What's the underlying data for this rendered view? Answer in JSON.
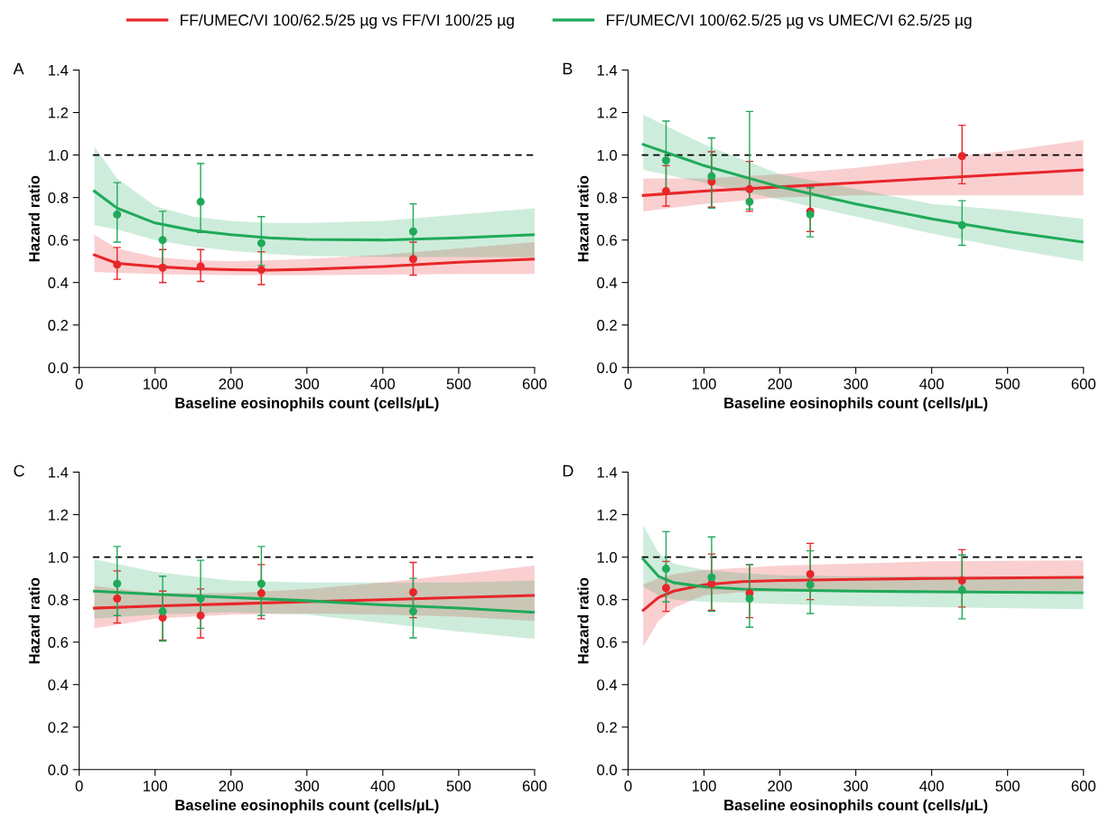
{
  "chart_data": [
    {
      "type": "line",
      "title": "A",
      "xlabel": "Baseline eosinophils count (cells/µL)",
      "ylabel": "Hazard ratio",
      "xlim": [
        0,
        600
      ],
      "xticks": [
        0,
        100,
        200,
        300,
        400,
        500,
        600
      ],
      "ylim": [
        0,
        1.4
      ],
      "yticks": [
        {
          "value": 0,
          "label": "0.0"
        },
        {
          "value": 0.2,
          "label": "0.2"
        },
        {
          "value": 0.4,
          "label": "0.4"
        },
        {
          "value": 0.6,
          "label": "0.6"
        },
        {
          "value": 0.8,
          "label": "0.8"
        },
        {
          "value": 1.0,
          "label": "1.0"
        },
        {
          "value": 1.2,
          "label": "1.2"
        },
        {
          "value": 1.4,
          "label": "1.4"
        }
      ],
      "legend": "top",
      "grid": false,
      "ref_lines": [
        {
          "axis": "y",
          "value": 1.0,
          "color": "#000000",
          "line_style": "dashed"
        }
      ],
      "series": [
        {
          "type": "line",
          "name": "FF/UMEC/VI 100/62.5/25 µg vs FF/VI 100/25 µg",
          "color": "#e8262a",
          "x": [
            20,
            50,
            100,
            150,
            200,
            250,
            300,
            400,
            500,
            600
          ],
          "values": [
            0.53,
            0.49,
            0.475,
            0.465,
            0.46,
            0.458,
            0.462,
            0.475,
            0.495,
            0.51
          ],
          "lower": [
            0.45,
            0.445,
            0.44,
            0.437,
            0.435,
            0.435,
            0.435,
            0.437,
            0.44,
            0.44
          ],
          "upper": [
            0.625,
            0.56,
            0.52,
            0.505,
            0.5,
            0.505,
            0.51,
            0.53,
            0.56,
            0.59
          ]
        },
        {
          "type": "line",
          "name": "FF/UMEC/VI 100/62.5/25 µg vs UMEC/VI 62.5/25 µg",
          "color": "#1faa59",
          "x": [
            20,
            50,
            100,
            150,
            200,
            250,
            300,
            400,
            500,
            600
          ],
          "values": [
            0.83,
            0.75,
            0.68,
            0.645,
            0.625,
            0.61,
            0.603,
            0.6,
            0.61,
            0.625
          ],
          "lower": [
            0.67,
            0.65,
            0.6,
            0.57,
            0.55,
            0.535,
            0.525,
            0.52,
            0.52,
            0.52
          ],
          "upper": [
            1.04,
            0.89,
            0.76,
            0.71,
            0.69,
            0.68,
            0.68,
            0.69,
            0.72,
            0.75
          ]
        },
        {
          "type": "scatter",
          "color": "#e8262a",
          "x": [
            50,
            110,
            160,
            240,
            440
          ],
          "values": [
            0.485,
            0.47,
            0.475,
            0.46,
            0.51
          ],
          "errors": [
            [
              0.415,
              0.565
            ],
            [
              0.4,
              0.555
            ],
            [
              0.405,
              0.555
            ],
            [
              0.39,
              0.545
            ],
            [
              0.435,
              0.59
            ]
          ]
        },
        {
          "type": "scatter",
          "color": "#1faa59",
          "x": [
            50,
            110,
            160,
            240,
            440
          ],
          "values": [
            0.72,
            0.6,
            0.78,
            0.585,
            0.64
          ],
          "errors": [
            [
              0.59,
              0.87
            ],
            [
              0.48,
              0.735
            ],
            [
              0.635,
              0.96
            ],
            [
              0.48,
              0.71
            ],
            [
              0.52,
              0.77
            ]
          ]
        }
      ]
    },
    {
      "type": "line",
      "title": "B",
      "xlabel": "Baseline eosinophils count (cells/µL)",
      "ylabel": "Hazard ratio",
      "xlim": [
        0,
        600
      ],
      "xticks": [
        0,
        100,
        200,
        300,
        400,
        500,
        600
      ],
      "ylim": [
        0,
        1.4
      ],
      "yticks": [
        {
          "value": 0,
          "label": "0.0"
        },
        {
          "value": 0.2,
          "label": "0.2"
        },
        {
          "value": 0.4,
          "label": "0.4"
        },
        {
          "value": 0.6,
          "label": "0.6"
        },
        {
          "value": 0.8,
          "label": "0.8"
        },
        {
          "value": 1.0,
          "label": "1.0"
        },
        {
          "value": 1.2,
          "label": "1.2"
        },
        {
          "value": 1.4,
          "label": "1.4"
        }
      ],
      "grid": false,
      "ref_lines": [
        {
          "axis": "y",
          "value": 1.0,
          "color": "#000000",
          "line_style": "dashed"
        }
      ],
      "series": [
        {
          "type": "line",
          "color": "#e8262a",
          "x": [
            20,
            100,
            200,
            300,
            400,
            500,
            600
          ],
          "values": [
            0.81,
            0.83,
            0.85,
            0.87,
            0.89,
            0.91,
            0.93
          ],
          "lower": [
            0.735,
            0.77,
            0.8,
            0.81,
            0.81,
            0.81,
            0.81
          ],
          "upper": [
            0.89,
            0.89,
            0.91,
            0.94,
            0.98,
            1.02,
            1.07
          ]
        },
        {
          "type": "line",
          "color": "#1faa59",
          "x": [
            20,
            100,
            200,
            300,
            400,
            500,
            600
          ],
          "values": [
            1.05,
            0.95,
            0.85,
            0.77,
            0.7,
            0.64,
            0.59
          ],
          "lower": [
            0.93,
            0.87,
            0.79,
            0.71,
            0.63,
            0.56,
            0.5
          ],
          "upper": [
            1.19,
            1.05,
            0.91,
            0.84,
            0.77,
            0.74,
            0.7
          ]
        },
        {
          "type": "scatter",
          "color": "#e8262a",
          "x": [
            50,
            110,
            160,
            240,
            440
          ],
          "values": [
            0.83,
            0.875,
            0.84,
            0.735,
            0.995
          ],
          "errors": [
            [
              0.76,
              0.95
            ],
            [
              0.755,
              1.015
            ],
            [
              0.735,
              0.97
            ],
            [
              0.64,
              0.85
            ],
            [
              0.865,
              1.14
            ]
          ]
        },
        {
          "type": "scatter",
          "color": "#1faa59",
          "x": [
            50,
            110,
            160,
            240,
            440
          ],
          "values": [
            0.975,
            0.9,
            0.78,
            0.72,
            0.67
          ],
          "errors": [
            [
              0.82,
              1.16
            ],
            [
              0.75,
              1.08
            ],
            [
              0.745,
              1.205
            ],
            [
              0.615,
              0.845
            ],
            [
              0.575,
              0.785
            ]
          ]
        }
      ]
    },
    {
      "type": "line",
      "title": "C",
      "xlabel": "Baseline eosinophils count (cells/µL)",
      "ylabel": "Hazard ratio",
      "xlim": [
        0,
        600
      ],
      "xticks": [
        0,
        100,
        200,
        300,
        400,
        500,
        600
      ],
      "ylim": [
        0,
        1.4
      ],
      "yticks": [
        {
          "value": 0,
          "label": "0.0"
        },
        {
          "value": 0.2,
          "label": "0.2"
        },
        {
          "value": 0.4,
          "label": "0.4"
        },
        {
          "value": 0.6,
          "label": "0.6"
        },
        {
          "value": 0.8,
          "label": "0.8"
        },
        {
          "value": 1.0,
          "label": "1.0"
        },
        {
          "value": 1.2,
          "label": "1.2"
        },
        {
          "value": 1.4,
          "label": "1.4"
        }
      ],
      "grid": false,
      "ref_lines": [
        {
          "axis": "y",
          "value": 1.0,
          "color": "#000000",
          "line_style": "dashed"
        }
      ],
      "series": [
        {
          "type": "line",
          "color": "#e8262a",
          "x": [
            20,
            100,
            200,
            300,
            400,
            500,
            600
          ],
          "values": [
            0.76,
            0.77,
            0.78,
            0.79,
            0.8,
            0.81,
            0.82
          ],
          "lower": [
            0.665,
            0.71,
            0.73,
            0.735,
            0.73,
            0.72,
            0.7
          ],
          "upper": [
            0.865,
            0.83,
            0.83,
            0.85,
            0.88,
            0.92,
            0.96
          ]
        },
        {
          "type": "line",
          "color": "#1faa59",
          "x": [
            20,
            100,
            200,
            300,
            400,
            500,
            600
          ],
          "values": [
            0.84,
            0.825,
            0.81,
            0.795,
            0.775,
            0.76,
            0.74
          ],
          "lower": [
            0.71,
            0.73,
            0.74,
            0.73,
            0.69,
            0.65,
            0.615
          ],
          "upper": [
            0.99,
            0.93,
            0.89,
            0.88,
            0.88,
            0.88,
            0.89
          ]
        },
        {
          "type": "scatter",
          "color": "#e8262a",
          "x": [
            50,
            110,
            160,
            240,
            440
          ],
          "values": [
            0.805,
            0.715,
            0.725,
            0.83,
            0.835
          ],
          "errors": [
            [
              0.69,
              0.935
            ],
            [
              0.61,
              0.84
            ],
            [
              0.62,
              0.85
            ],
            [
              0.71,
              0.965
            ],
            [
              0.715,
              0.975
            ]
          ]
        },
        {
          "type": "scatter",
          "color": "#1faa59",
          "x": [
            50,
            110,
            160,
            240,
            440
          ],
          "values": [
            0.875,
            0.745,
            0.805,
            0.875,
            0.745
          ],
          "errors": [
            [
              0.725,
              1.05
            ],
            [
              0.605,
              0.91
            ],
            [
              0.665,
              0.985
            ],
            [
              0.725,
              1.05
            ],
            [
              0.62,
              0.9
            ]
          ]
        }
      ]
    },
    {
      "type": "line",
      "title": "D",
      "xlabel": "Baseline eosinophils count (cells/µL)",
      "ylabel": "Hazard ratio",
      "xlim": [
        0,
        600
      ],
      "xticks": [
        0,
        100,
        200,
        300,
        400,
        500,
        600
      ],
      "ylim": [
        0,
        1.4
      ],
      "yticks": [
        {
          "value": 0,
          "label": "0.0"
        },
        {
          "value": 0.2,
          "label": "0.2"
        },
        {
          "value": 0.4,
          "label": "0.4"
        },
        {
          "value": 0.6,
          "label": "0.6"
        },
        {
          "value": 0.8,
          "label": "0.8"
        },
        {
          "value": 1.0,
          "label": "1.0"
        },
        {
          "value": 1.2,
          "label": "1.2"
        },
        {
          "value": 1.4,
          "label": "1.4"
        }
      ],
      "grid": false,
      "ref_lines": [
        {
          "axis": "y",
          "value": 1.0,
          "color": "#000000",
          "line_style": "dashed"
        }
      ],
      "series": [
        {
          "type": "line",
          "color": "#e8262a",
          "x": [
            20,
            40,
            60,
            100,
            150,
            200,
            300,
            400,
            600
          ],
          "values": [
            0.75,
            0.81,
            0.84,
            0.87,
            0.885,
            0.89,
            0.895,
            0.9,
            0.905
          ],
          "lower": [
            0.58,
            0.7,
            0.76,
            0.82,
            0.835,
            0.84,
            0.84,
            0.84,
            0.84
          ],
          "upper": [
            0.87,
            0.9,
            0.92,
            0.94,
            0.95,
            0.96,
            0.97,
            0.98,
            0.985
          ]
        },
        {
          "type": "line",
          "color": "#1faa59",
          "x": [
            20,
            40,
            60,
            100,
            150,
            200,
            300,
            400,
            600
          ],
          "values": [
            0.99,
            0.91,
            0.88,
            0.86,
            0.85,
            0.845,
            0.84,
            0.837,
            0.833
          ],
          "lower": [
            0.86,
            0.82,
            0.8,
            0.79,
            0.785,
            0.78,
            0.77,
            0.765,
            0.755
          ],
          "upper": [
            1.15,
            1.02,
            0.97,
            0.94,
            0.925,
            0.915,
            0.91,
            0.91,
            0.91
          ]
        },
        {
          "type": "scatter",
          "color": "#e8262a",
          "x": [
            50,
            110,
            160,
            240,
            440
          ],
          "values": [
            0.855,
            0.875,
            0.83,
            0.92,
            0.89
          ],
          "errors": [
            [
              0.745,
              0.98
            ],
            [
              0.75,
              1.015
            ],
            [
              0.715,
              0.965
            ],
            [
              0.8,
              1.065
            ],
            [
              0.765,
              1.035
            ]
          ]
        },
        {
          "type": "scatter",
          "color": "#1faa59",
          "x": [
            50,
            110,
            160,
            240,
            440
          ],
          "values": [
            0.945,
            0.905,
            0.805,
            0.87,
            0.845
          ],
          "errors": [
            [
              0.79,
              1.12
            ],
            [
              0.745,
              1.095
            ],
            [
              0.67,
              0.965
            ],
            [
              0.735,
              1.03
            ],
            [
              0.71,
              1.01
            ]
          ]
        }
      ]
    }
  ]
}
